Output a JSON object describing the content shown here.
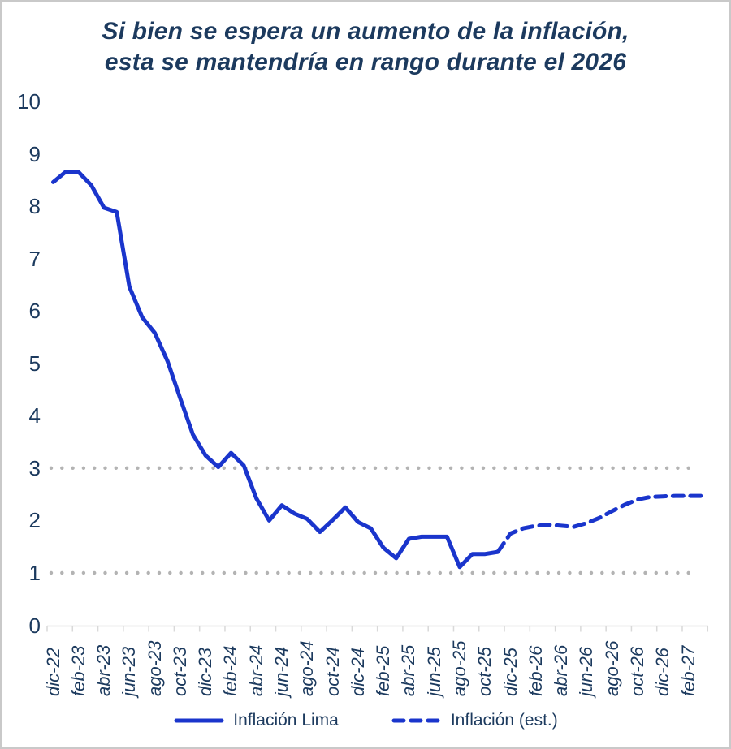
{
  "title": {
    "line1": "Si bien se espera un aumento de la inflación,",
    "line2": "esta se mantendría en rango durante el 2026"
  },
  "colors": {
    "line_blue": "#1a35cc",
    "text_navy": "#1c3a5e",
    "grid_dot_gray": "#b3b3b3",
    "axis_gray": "#d9d9d9"
  },
  "legend": [
    {
      "label": "Inflación Lima",
      "style": "solid"
    },
    {
      "label": "Inflación (est.)",
      "style": "dashed"
    }
  ],
  "chart_data": {
    "type": "line",
    "title": "Si bien se espera un aumento de la inflación, esta se mantendría en rango durante el 2026",
    "ylim": [
      0,
      10
    ],
    "y_ticks": [
      "0",
      "1",
      "2",
      "3",
      "4",
      "5",
      "6",
      "7",
      "8",
      "9",
      "10"
    ],
    "x_tick_labels": [
      "dic-22",
      "feb-23",
      "abr-23",
      "jun-23",
      "ago-23",
      "oct-23",
      "dic-23",
      "feb-24",
      "abr-24",
      "jun-24",
      "ago-24",
      "oct-24",
      "dic-24",
      "feb-25",
      "abr-25",
      "jun-25",
      "ago-25",
      "oct-25",
      "dic-25",
      "feb-26",
      "abr-26",
      "jun-26",
      "ago-26",
      "oct-26",
      "dic-26",
      "feb-27"
    ],
    "months_per_tick": 2,
    "reference_dotted_lines": [
      1,
      3
    ],
    "grid": "dotted horizontal reference lines only",
    "legend_position": "bottom center",
    "series": [
      {
        "name": "Inflación Lima",
        "style": "solid",
        "start_month_index": 0,
        "values": [
          8.46,
          8.66,
          8.65,
          8.4,
          7.97,
          7.89,
          6.46,
          5.88,
          5.58,
          5.04,
          4.33,
          3.64,
          3.24,
          3.02,
          3.29,
          3.05,
          2.42,
          2.0,
          2.29,
          2.13,
          2.03,
          1.78,
          2.01,
          2.25,
          1.97,
          1.85,
          1.48,
          1.28,
          1.65,
          1.69,
          1.69,
          1.69,
          1.11,
          1.36,
          1.36,
          1.4
        ]
      },
      {
        "name": "Inflación (est.)",
        "style": "dashed",
        "start_month_index": 35,
        "values": [
          1.4,
          1.75,
          1.85,
          1.9,
          1.92,
          1.9,
          1.88,
          1.95,
          2.05,
          2.18,
          2.3,
          2.4,
          2.45,
          2.46,
          2.47,
          2.47,
          2.47
        ]
      }
    ]
  }
}
